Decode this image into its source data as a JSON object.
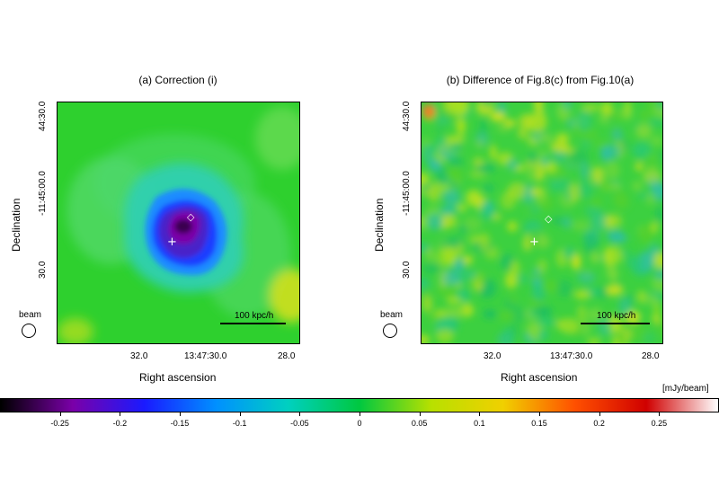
{
  "panels": [
    {
      "title": "(a) Correction (i)",
      "ylabel": "Declination",
      "xlabel": "Right ascension",
      "yticks": [
        "44:30.0",
        "-11:45:00.0",
        "30.0"
      ],
      "xticks": [
        "32.0",
        "13:47:30.0",
        "28.0"
      ],
      "beam_label": "beam",
      "scalebar_label": "100 kpc/h"
    },
    {
      "title": "(b) Difference of Fig.8(c) from Fig.10(a)",
      "ylabel": "Declination",
      "xlabel": "Right ascension",
      "yticks": [
        "44:30.0",
        "-11:45:00.0",
        "30.0"
      ],
      "xticks": [
        "32.0",
        "13:47:30.0",
        "28.0"
      ],
      "beam_label": "beam",
      "scalebar_label": "100 kpc/h"
    }
  ],
  "colorbar": {
    "unit": "[mJy/beam]",
    "ticks": [
      "-0.25",
      "-0.2",
      "-0.15",
      "-0.1",
      "-0.05",
      "0",
      "0.05",
      "0.1",
      "0.15",
      "0.2",
      "0.25"
    ],
    "tick_values": [
      -0.25,
      -0.2,
      -0.15,
      -0.1,
      -0.05,
      0,
      0.05,
      0.1,
      0.15,
      0.2,
      0.25
    ],
    "range": [
      -0.3,
      0.3
    ],
    "colors": [
      "#000000",
      "#7a00a8",
      "#1a1aff",
      "#0090ff",
      "#00d0c0",
      "#00c840",
      "#b8e000",
      "#f0d000",
      "#ff5000",
      "#d00000",
      "#ffffff"
    ]
  }
}
